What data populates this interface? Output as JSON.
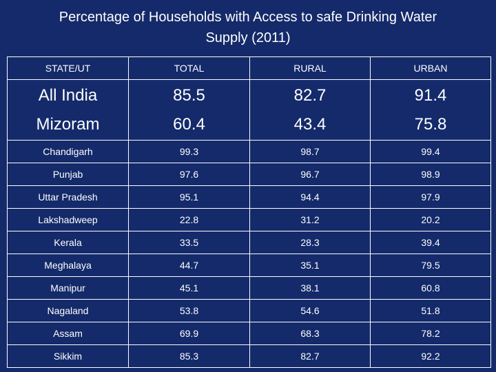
{
  "title_line1": "Percentage of Households with Access to safe Drinking Water",
  "title_line2": "Supply (2011)",
  "columns": [
    "STATE/UT",
    "TOTAL",
    "RURAL",
    "URBAN"
  ],
  "highlight_rows": [
    {
      "name": "All India",
      "total": "85.5",
      "rural": "82.7",
      "urban": "91.4"
    },
    {
      "name": "Mizoram",
      "total": "60.4",
      "rural": "43.4",
      "urban": "75.8"
    }
  ],
  "rows": [
    {
      "name": "Chandigarh",
      "total": "99.3",
      "rural": "98.7",
      "urban": "99.4"
    },
    {
      "name": "Punjab",
      "total": "97.6",
      "rural": "96.7",
      "urban": "98.9"
    },
    {
      "name": "Uttar Pradesh",
      "total": "95.1",
      "rural": "94.4",
      "urban": "97.9"
    },
    {
      "name": "Lakshadweep",
      "total": "22.8",
      "rural": "31.2",
      "urban": "20.2"
    },
    {
      "name": "Kerala",
      "total": "33.5",
      "rural": "28.3",
      "urban": "39.4"
    },
    {
      "name": "Meghalaya",
      "total": "44.7",
      "rural": "35.1",
      "urban": "79.5"
    },
    {
      "name": "Manipur",
      "total": "45.1",
      "rural": "38.1",
      "urban": "60.8"
    },
    {
      "name": "Nagaland",
      "total": "53.8",
      "rural": "54.6",
      "urban": "51.8"
    },
    {
      "name": "Assam",
      "total": "69.9",
      "rural": "68.3",
      "urban": "78.2"
    },
    {
      "name": "Sikkim",
      "total": "85.3",
      "rural": "82.7",
      "urban": "92.2"
    }
  ]
}
